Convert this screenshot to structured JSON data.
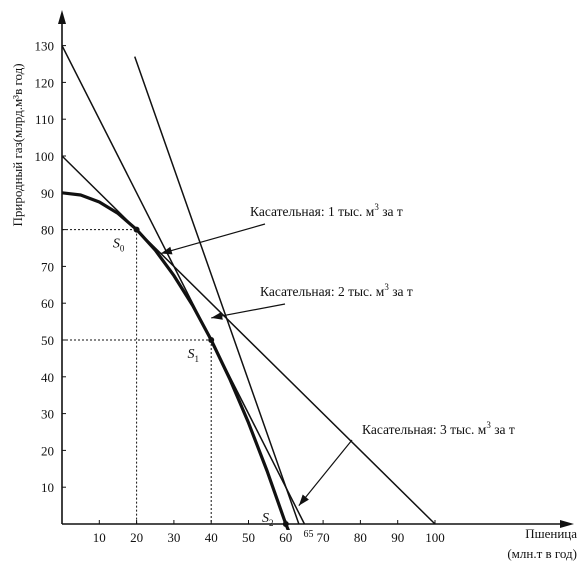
{
  "chart_data": {
    "type": "line",
    "title": "",
    "ylabel": "Природный газ(млрд.м³в год)",
    "xlabel_line1": "Пшеница",
    "xlabel_line2": "(млн.т в год)",
    "xlim": [
      0,
      105
    ],
    "ylim": [
      0,
      135
    ],
    "x_ticks": [
      "10",
      "20",
      "30",
      "40",
      "50",
      "60",
      "70",
      "80",
      "90",
      "100"
    ],
    "y_ticks": [
      "10",
      "20",
      "30",
      "40",
      "50",
      "60",
      "70",
      "80",
      "90",
      "100",
      "110",
      "120",
      "130"
    ],
    "extra_x_tick": {
      "label": "65",
      "value": 65
    },
    "grid": false,
    "legend": "none",
    "ppf_curve": {
      "x": [
        0,
        5,
        10,
        15,
        20,
        25,
        30,
        35,
        40,
        45,
        50,
        55,
        60,
        62
      ],
      "y": [
        90,
        89.4,
        87.5,
        84.4,
        80,
        74.4,
        67.5,
        59.4,
        50,
        39.4,
        27.5,
        14.4,
        0,
        -5
      ]
    },
    "tangents": [
      {
        "x": [
          0,
          100
        ],
        "y": [
          100,
          0
        ]
      },
      {
        "x": [
          0,
          65
        ],
        "y": [
          130,
          0
        ]
      },
      {
        "x": [
          19.5,
          63.5
        ],
        "y": [
          127,
          0
        ]
      }
    ],
    "points": [
      {
        "label": "S",
        "sub": "0",
        "x": 20,
        "y": 80
      },
      {
        "label": "S",
        "sub": "1",
        "x": 40,
        "y": 50
      },
      {
        "label": "S",
        "sub": "2",
        "x": 60,
        "y": 0
      }
    ],
    "annotations": [
      {
        "text_pre": "Касательная: 1 тыс. м",
        "sup": "3",
        "text_post": " за т",
        "target_x": 26.5,
        "target_y": 73.5
      },
      {
        "text_pre": "Касательная: 2 тыс. м",
        "sup": "3",
        "text_post": " за т",
        "target_x": 40,
        "target_y": 56
      },
      {
        "text_pre": "Касательная: 3 тыс. м",
        "sup": "3",
        "text_post": " за т",
        "target_x": 63.5,
        "target_y": 5
      }
    ]
  }
}
